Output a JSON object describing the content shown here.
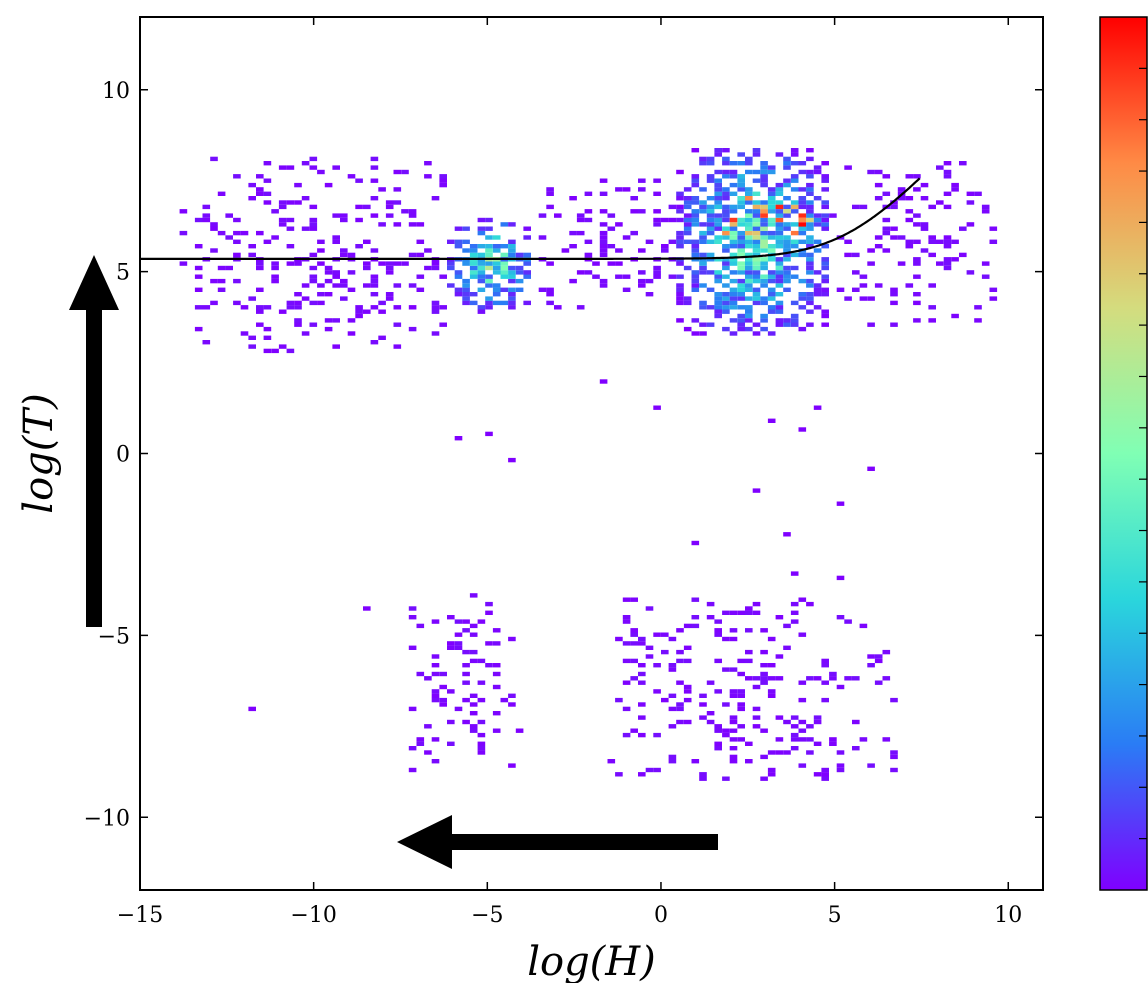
{
  "chart_data": {
    "type": "heatmap",
    "title": "",
    "xlabel": "log(H)",
    "ylabel": "log(T)",
    "xlim": [
      -15,
      11
    ],
    "ylim": [
      -12,
      12
    ],
    "xticks": [
      -15,
      -10,
      -5,
      0,
      5,
      10
    ],
    "yticks": [
      -10,
      -5,
      0,
      5,
      10
    ],
    "xtick_labels": [
      "−15",
      "−10",
      "−5",
      "0",
      "5",
      "10"
    ],
    "ytick_labels": [
      "−10",
      "−5",
      "0",
      "5",
      "10"
    ],
    "grid": false,
    "colormap": "rainbow",
    "colormap_colors": [
      "#7f00ff",
      "#2a7cf5",
      "#2ad6dc",
      "#80ffb4",
      "#d4dc7e",
      "#ff8a45",
      "#ff0000"
    ],
    "colorbar": true,
    "density_clusters": [
      {
        "x_range": [
          -6.2,
          -3.8
        ],
        "y_range": [
          3.8,
          6.4
        ],
        "peak": 0.3
      },
      {
        "x_range": [
          0.5,
          4.8
        ],
        "y_range": [
          3.2,
          8.3
        ],
        "peak": 1.0
      },
      {
        "x_range": [
          -3.8,
          0.5
        ],
        "y_range": [
          4.0,
          7.6
        ],
        "peak": 0.15
      },
      {
        "x_range": [
          4.8,
          9.6
        ],
        "y_range": [
          3.5,
          8.0
        ],
        "peak": 0.1
      },
      {
        "x_range": [
          -13.8,
          -6.2
        ],
        "y_range": [
          2.8,
          8.2
        ],
        "peak": 0.05
      },
      {
        "x_range": [
          -7.2,
          -4.2
        ],
        "y_range": [
          -8.8,
          -4.0
        ],
        "peak": 0.05
      },
      {
        "x_range": [
          -1.6,
          6.6
        ],
        "y_range": [
          -9.0,
          -4.0
        ],
        "peak": 0.05
      }
    ],
    "peaks": [
      {
        "x": 2.7,
        "y": 6.7
      },
      {
        "x": 2.2,
        "y": 6.1
      },
      {
        "x": 4.1,
        "y": 6.2
      },
      {
        "x": 3.5,
        "y": 6.5
      }
    ],
    "scattered_points": [
      [
        -4.3,
        -0.2
      ],
      [
        -5.1,
        0.5
      ],
      [
        -6.0,
        0.4
      ],
      [
        2.7,
        -1.1
      ],
      [
        5.1,
        -1.4
      ],
      [
        5.9,
        -0.5
      ],
      [
        0.8,
        -2.5
      ],
      [
        3.5,
        -2.3
      ],
      [
        3.8,
        -3.4
      ],
      [
        5.0,
        -3.5
      ],
      [
        -8.5,
        -4.3
      ],
      [
        -11.9,
        -7.1
      ],
      [
        -4.5,
        -8.7
      ],
      [
        3.0,
        -8.9
      ],
      [
        4.5,
        -8.9
      ],
      [
        -4.2,
        -7.7
      ],
      [
        -1.7,
        1.9
      ],
      [
        -0.2,
        1.2
      ],
      [
        3.0,
        0.8
      ],
      [
        3.9,
        0.6
      ],
      [
        4.5,
        1.2
      ],
      [
        -11.5,
        2.7
      ],
      [
        -9.5,
        2.9
      ],
      [
        -13.5,
        4.4
      ]
    ],
    "curve": {
      "formula": "log(T) = log(exp(T0) + exp(H))",
      "T0": 5.35,
      "x_range": [
        -15,
        7.5
      ],
      "color": "#000000"
    },
    "arrows": [
      {
        "direction": "up",
        "color": "#000000"
      },
      {
        "direction": "left",
        "color": "#000000"
      }
    ]
  }
}
